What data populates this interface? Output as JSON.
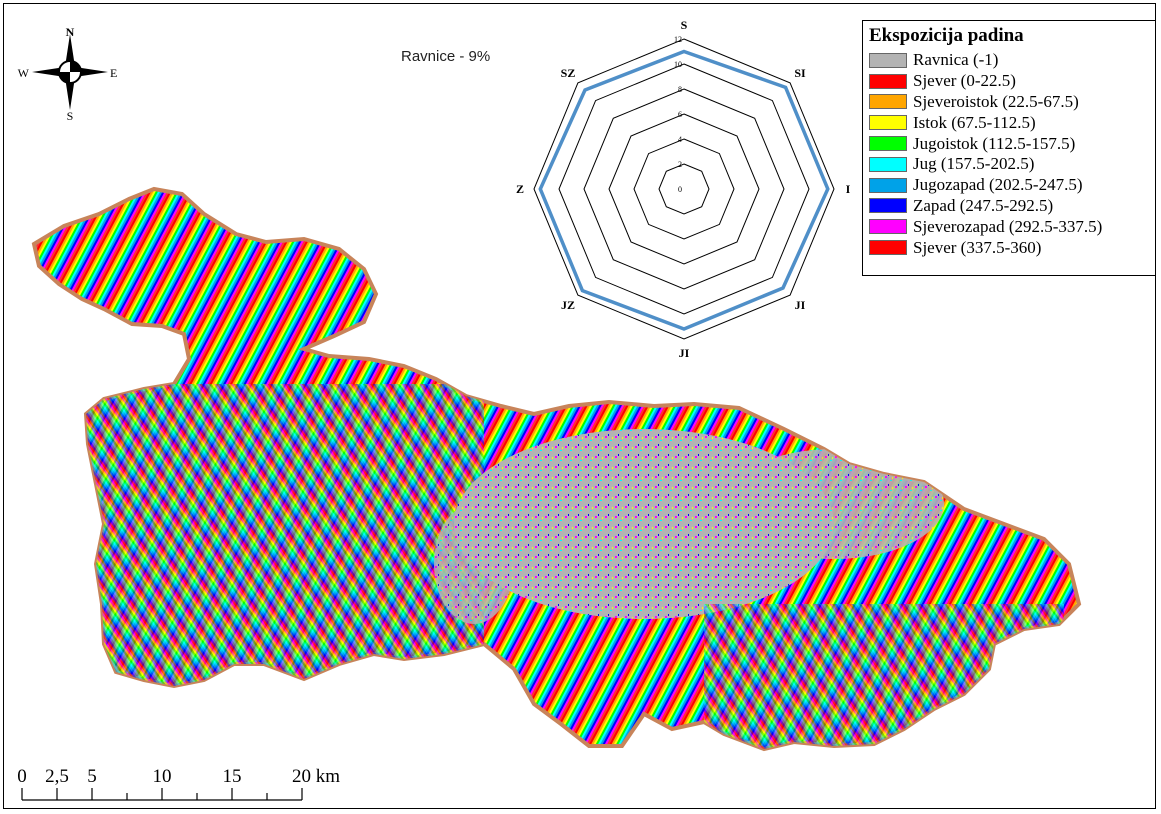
{
  "map": {
    "annotation": "Ravnice - 9%"
  },
  "north_arrow": {
    "icon": "north-arrow-compass-icon",
    "n": "N",
    "s": "S",
    "w": "W",
    "e": "E"
  },
  "legend": {
    "title": "Ekspozicija padina",
    "items": [
      {
        "label": "Ravnica (-1)",
        "color": "#b3b3b3"
      },
      {
        "label": "Sjever (0-22.5)",
        "color": "#ff0000"
      },
      {
        "label": "Sjeveroistok (22.5-67.5)",
        "color": "#ffa500"
      },
      {
        "label": "Istok (67.5-112.5)",
        "color": "#ffff00"
      },
      {
        "label": "Jugoistok (112.5-157.5)",
        "color": "#00ff00"
      },
      {
        "label": "Jug (157.5-202.5)",
        "color": "#00ffff"
      },
      {
        "label": "Jugozapad (202.5-247.5)",
        "color": "#00a2e8"
      },
      {
        "label": "Zapad (247.5-292.5)",
        "color": "#0000ff"
      },
      {
        "label": "Sjeverozapad (292.5-337.5)",
        "color": "#ff00ff"
      },
      {
        "label": "Sjever (337.5-360)",
        "color": "#ff0000"
      }
    ]
  },
  "chart_data": {
    "type": "radar",
    "axes": [
      "S",
      "SI",
      "I",
      "JI",
      "JI",
      "JZ",
      "Z",
      "SZ"
    ],
    "ticks": [
      "0",
      "2",
      "4",
      "6",
      "8",
      "10",
      "12"
    ],
    "range": [
      0,
      12
    ],
    "values": [
      11,
      11.5,
      11.5,
      11.2,
      11.2,
      11.5,
      11.5,
      11.2
    ],
    "series_color": "#4f8fc8"
  },
  "scale_bar": {
    "labels": [
      "0",
      "2,5",
      "5",
      "10",
      "15",
      "20 km"
    ],
    "values": [
      0,
      2.5,
      5,
      10,
      15,
      20
    ],
    "max_km": 20
  }
}
